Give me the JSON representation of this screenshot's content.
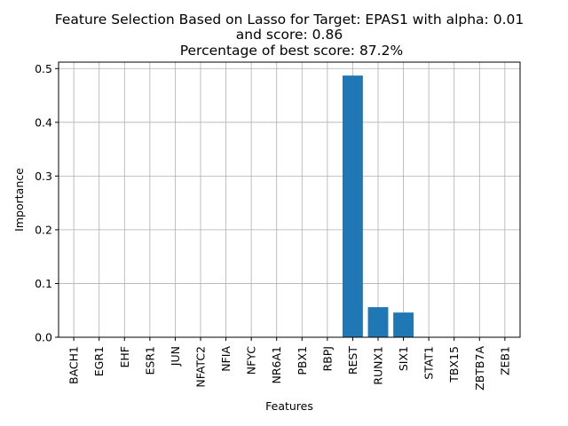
{
  "chart_data": {
    "type": "bar",
    "title_lines": [
      "Feature Selection Based on Lasso for Target: EPAS1 with alpha: 0.01",
      "and score: 0.86",
      " Percentage of best score: 87.2%"
    ],
    "xlabel": "Features",
    "ylabel": "Importance",
    "categories": [
      "BACH1",
      "EGR1",
      "EHF",
      "ESR1",
      "JUN",
      "NFATC2",
      "NFIA",
      "NFYC",
      "NR6A1",
      "PBX1",
      "RBPJ",
      "REST",
      "RUNX1",
      "SIX1",
      "STAT1",
      "TBX15",
      "ZBTB7A",
      "ZEB1"
    ],
    "values": [
      0,
      0,
      0,
      0,
      0,
      0,
      0,
      0,
      0,
      0,
      0,
      0.487,
      0.056,
      0.046,
      0,
      0,
      0,
      0
    ],
    "ylim": [
      0,
      0.512
    ],
    "yticks": [
      0.0,
      0.1,
      0.2,
      0.3,
      0.4,
      0.5
    ],
    "ytick_labels": [
      "0.0",
      "0.1",
      "0.2",
      "0.3",
      "0.4",
      "0.5"
    ],
    "grid": true,
    "bar_color": "#1f77b4"
  }
}
